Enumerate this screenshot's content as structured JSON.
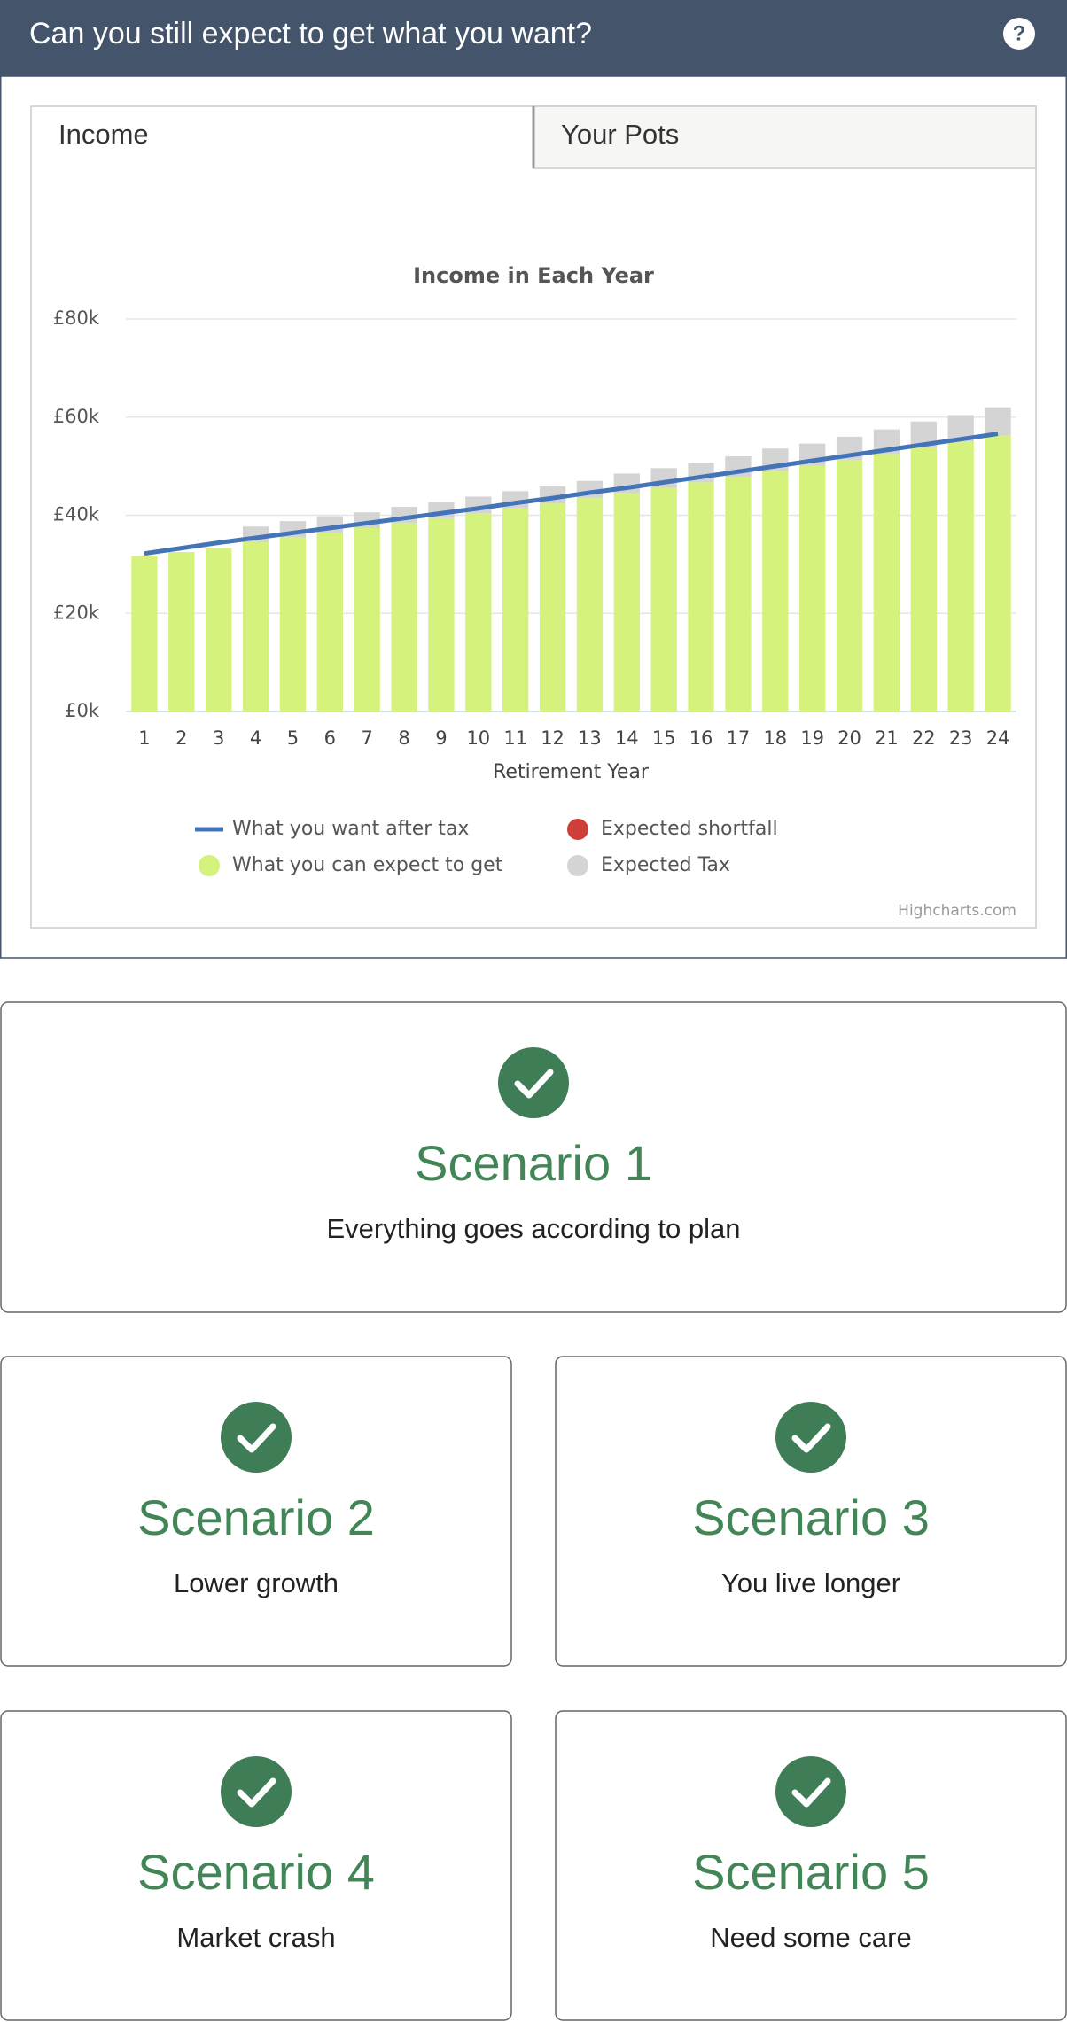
{
  "header": {
    "title": "Can you still expect to get what you want?",
    "help": "?"
  },
  "tabs": [
    "Income",
    "Your Pots"
  ],
  "chart_data": {
    "type": "bar",
    "stacked": true,
    "title": "Income in Each Year",
    "x_label": "Retirement Year",
    "categories": [
      "1",
      "2",
      "3",
      "4",
      "5",
      "6",
      "7",
      "8",
      "9",
      "10",
      "11",
      "12",
      "13",
      "14",
      "15",
      "16",
      "17",
      "18",
      "19",
      "20",
      "21",
      "22",
      "23",
      "24"
    ],
    "series": [
      {
        "name": "What you want after tax",
        "type": "line",
        "color": "#4474b8",
        "values": [
          32.2,
          33.3,
          34.4,
          35.4,
          36.4,
          37.4,
          38.4,
          39.4,
          40.4,
          41.4,
          42.5,
          43.5,
          44.6,
          45.6,
          46.7,
          47.8,
          48.9,
          50,
          51.1,
          52.2,
          53.3,
          54.4,
          55.5,
          56.6
        ]
      },
      {
        "name": "Expected shortfall",
        "type": "bar",
        "color": "#cf3f39",
        "values": [
          0,
          0,
          0,
          0,
          0,
          0,
          0,
          0,
          0,
          0,
          0,
          0,
          0,
          0,
          0,
          0,
          0,
          0,
          0,
          0,
          0,
          0,
          0,
          0
        ]
      },
      {
        "name": "What you can expect to get",
        "type": "bar",
        "color": "#d4f27c",
        "values": [
          31.7,
          32.5,
          33.3,
          34.5,
          35.5,
          36.4,
          37.4,
          38.4,
          39.4,
          40.4,
          41.4,
          42.4,
          43.5,
          44.5,
          45.6,
          46.7,
          47.8,
          49,
          50.1,
          51.3,
          52.5,
          53.7,
          55,
          56.2
        ]
      },
      {
        "name": "Expected Tax",
        "type": "bar",
        "color": "#d4d4d4",
        "values": [
          0,
          0,
          0,
          3.2,
          3.3,
          3.4,
          3.2,
          3.3,
          3.3,
          3.4,
          3.5,
          3.5,
          3.5,
          4,
          4,
          4,
          4.2,
          4.6,
          4.5,
          4.7,
          5,
          5.4,
          5.4,
          5.8
        ]
      }
    ],
    "ylim": [
      0,
      80
    ],
    "yticks": [
      {
        "value": 0,
        "label": "£0k"
      },
      {
        "value": 20,
        "label": "£20k"
      },
      {
        "value": 40,
        "label": "£40k"
      },
      {
        "value": 60,
        "label": "£60k"
      },
      {
        "value": 80,
        "label": "£80k"
      }
    ],
    "grid": true,
    "credits": "Highcharts.com"
  },
  "scenarios": [
    {
      "title": "Scenario 1",
      "description": "Everything goes according to plan"
    },
    {
      "title": "Scenario 2",
      "description": "Lower growth"
    },
    {
      "title": "Scenario 3",
      "description": "You live longer"
    },
    {
      "title": "Scenario 4",
      "description": "Market crash"
    },
    {
      "title": "Scenario 5",
      "description": "Need some care"
    }
  ]
}
